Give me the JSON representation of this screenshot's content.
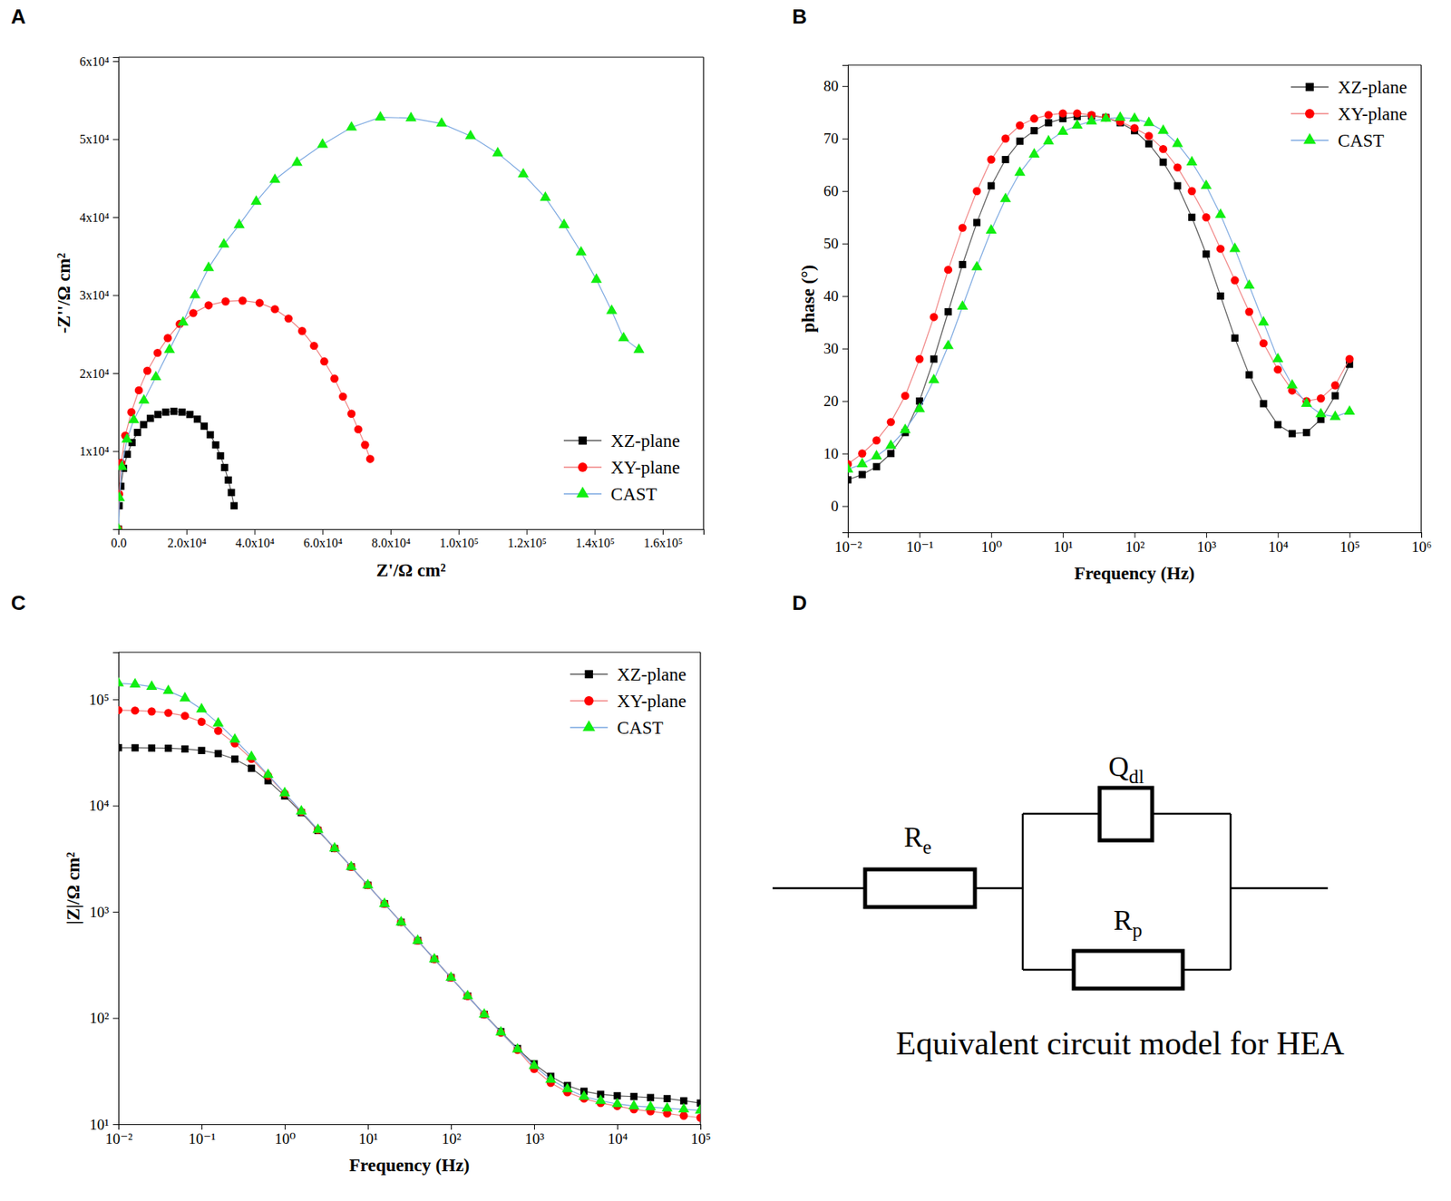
{
  "chart_data": [
    {
      "type": "line",
      "panel": "A",
      "x_label": "Z'/Ω cm²",
      "y_label": "-Z''/Ω cm²",
      "xlim": [
        0,
        172000
      ],
      "ylim": [
        0,
        60500
      ],
      "xticks": [
        {
          "value": 0,
          "label": "0.0"
        },
        {
          "value": 20000,
          "label": "2.0x10⁴"
        },
        {
          "value": 40000,
          "label": "4.0x10⁴"
        },
        {
          "value": 60000,
          "label": "6.0x10⁴"
        },
        {
          "value": 80000,
          "label": "8.0x10⁴"
        },
        {
          "value": 100000,
          "label": "1.0x10⁵"
        },
        {
          "value": 120000,
          "label": "1.2x10⁵"
        },
        {
          "value": 140000,
          "label": "1.4x10⁵"
        },
        {
          "value": 160000,
          "label": "1.6x10⁵"
        }
      ],
      "yticks": [
        {
          "value": 10000,
          "label": "1x10⁴"
        },
        {
          "value": 20000,
          "label": "2x10⁴"
        },
        {
          "value": 30000,
          "label": "3x10⁴"
        },
        {
          "value": 40000,
          "label": "4x10⁴"
        },
        {
          "value": 50000,
          "label": "5x10⁴"
        },
        {
          "value": 60000,
          "label": "6x10⁴"
        }
      ],
      "legend": "lower right",
      "series": [
        {
          "name": "XZ-plane",
          "color": "#000000",
          "marker": "square",
          "x": [
            0,
            200,
            700,
            1500,
            2600,
            4000,
            5600,
            7400,
            9400,
            11600,
            13900,
            16300,
            18700,
            21000,
            23200,
            25200,
            27000,
            28600,
            30000,
            31200,
            32300,
            33200,
            34000
          ],
          "values": [
            0,
            3000,
            5500,
            7800,
            9600,
            11100,
            12400,
            13400,
            14200,
            14700,
            15000,
            15100,
            15000,
            14700,
            14100,
            13200,
            12100,
            10800,
            9400,
            7900,
            6300,
            4700,
            3000
          ]
        },
        {
          "name": "XY-plane",
          "color": "#ff0000",
          "marker": "circle",
          "x": [
            0,
            200,
            800,
            2000,
            3800,
            6000,
            8500,
            11500,
            14500,
            18000,
            22000,
            26500,
            31500,
            36500,
            41500,
            46000,
            50000,
            54000,
            57500,
            60500,
            63500,
            66000,
            68500,
            70500,
            72500,
            74000
          ],
          "values": [
            0,
            4500,
            8500,
            12000,
            15000,
            17800,
            20300,
            22600,
            24500,
            26300,
            27700,
            28700,
            29200,
            29300,
            29000,
            28200,
            27000,
            25400,
            23500,
            21500,
            19300,
            17000,
            14800,
            12800,
            10800,
            9000
          ]
        },
        {
          "name": "CAST",
          "color": "#11ee11",
          "marker": "triangle",
          "x": [
            0,
            300,
            1000,
            2500,
            4500,
            7500,
            11000,
            15000,
            19000,
            22500,
            26500,
            31000,
            35500,
            40500,
            46000,
            52500,
            60000,
            68500,
            77000,
            86000,
            95000,
            103500,
            111500,
            119000,
            125500,
            131000,
            136000,
            140500,
            145000,
            148500,
            153000
          ],
          "values": [
            0,
            4000,
            8000,
            11500,
            14000,
            16500,
            19500,
            23000,
            26500,
            30000,
            33500,
            36500,
            39000,
            42000,
            44800,
            47000,
            49300,
            51500,
            52800,
            52700,
            52000,
            50400,
            48200,
            45500,
            42500,
            39000,
            35500,
            32000,
            28000,
            24500,
            23000
          ]
        }
      ]
    },
    {
      "type": "line",
      "panel": "B",
      "x_label": "Frequency (Hz)",
      "y_label": "phase (°)",
      "log": "x",
      "xlim": [
        0.01,
        1000000
      ],
      "ylim": [
        -5,
        84
      ],
      "xticks": [
        {
          "value": 0.01,
          "label": "10⁻²"
        },
        {
          "value": 0.1,
          "label": "10⁻¹"
        },
        {
          "value": 1,
          "label": "10⁰"
        },
        {
          "value": 10,
          "label": "10¹"
        },
        {
          "value": 100,
          "label": "10²"
        },
        {
          "value": 1000,
          "label": "10³"
        },
        {
          "value": 10000,
          "label": "10⁴"
        },
        {
          "value": 100000,
          "label": "10⁵"
        },
        {
          "value": 1000000,
          "label": "10⁶"
        }
      ],
      "yticks": [
        0,
        10,
        20,
        30,
        40,
        50,
        60,
        70,
        80
      ],
      "legend": "upper right",
      "x": [
        0.01,
        0.01585,
        0.02512,
        0.03981,
        0.0631,
        0.1,
        0.1585,
        0.2512,
        0.3981,
        0.631,
        1,
        1.585,
        2.512,
        3.981,
        6.31,
        10,
        15.85,
        25.12,
        39.81,
        63.1,
        100,
        158.5,
        251.2,
        398.1,
        631,
        1000,
        1585,
        2512,
        3981,
        6310,
        10000,
        15850,
        25120,
        39810,
        63100,
        100000
      ],
      "series": [
        {
          "name": "XZ-plane",
          "color": "#000000",
          "marker": "square",
          "values": [
            5,
            6,
            7.5,
            10,
            14,
            20,
            28,
            37,
            46,
            54,
            61,
            66,
            69.5,
            71.5,
            73,
            73.8,
            74.2,
            74.3,
            74,
            73,
            71.5,
            69,
            65.5,
            61,
            55,
            48,
            40,
            32,
            25,
            19.5,
            15.5,
            13.8,
            14,
            16.5,
            21,
            27
          ]
        },
        {
          "name": "XY-plane",
          "color": "#ff0000",
          "marker": "circle",
          "values": [
            8,
            10,
            12.5,
            16,
            21,
            28,
            36,
            45,
            53,
            60,
            66,
            70,
            72.5,
            73.8,
            74.5,
            74.8,
            74.8,
            74.5,
            74,
            73.2,
            72,
            70.5,
            68,
            64.5,
            60,
            55,
            49,
            43,
            37,
            31,
            26,
            22,
            20,
            20.5,
            23,
            28
          ]
        },
        {
          "name": "CAST",
          "color": "#11ee11",
          "marker": "triangle",
          "values": [
            7,
            8,
            9.5,
            11.5,
            14.5,
            18.5,
            24,
            30.5,
            38,
            45.5,
            52.5,
            58.5,
            63.5,
            67,
            69.5,
            71.3,
            72.5,
            73.3,
            73.8,
            74,
            73.8,
            73,
            71.5,
            69,
            65.5,
            61,
            55.5,
            49,
            42,
            35,
            28,
            23,
            19.5,
            17.5,
            17,
            18
          ]
        }
      ]
    },
    {
      "type": "line",
      "panel": "C",
      "x_label": "Frequency (Hz)",
      "y_label": "|Z|/Ω cm²",
      "log": true,
      "xlim": [
        0.01,
        100000
      ],
      "ylim": [
        10,
        278000
      ],
      "xticks": [
        {
          "value": 0.01,
          "label": "10⁻²"
        },
        {
          "value": 0.1,
          "label": "10⁻¹"
        },
        {
          "value": 1,
          "label": "10⁰"
        },
        {
          "value": 10,
          "label": "10¹"
        },
        {
          "value": 100,
          "label": "10²"
        },
        {
          "value": 1000,
          "label": "10³"
        },
        {
          "value": 10000,
          "label": "10⁴"
        },
        {
          "value": 100000,
          "label": "10⁵"
        }
      ],
      "yticks": [
        {
          "value": 10,
          "label": "10¹"
        },
        {
          "value": 100,
          "label": "10²"
        },
        {
          "value": 1000,
          "label": "10³"
        },
        {
          "value": 10000,
          "label": "10⁴"
        },
        {
          "value": 100000,
          "label": "10⁵"
        }
      ],
      "legend": "upper right",
      "x": [
        0.01,
        0.01585,
        0.02512,
        0.03981,
        0.0631,
        0.1,
        0.1585,
        0.2512,
        0.3981,
        0.631,
        1,
        1.585,
        2.512,
        3.981,
        6.31,
        10,
        15.85,
        25.12,
        39.81,
        63.1,
        100,
        158.5,
        251.2,
        398.1,
        631,
        1000,
        1585,
        2512,
        3981,
        6310,
        10000,
        15850,
        25120,
        39810,
        63100,
        100000
      ],
      "series": [
        {
          "name": "XZ-plane",
          "color": "#000000",
          "marker": "square",
          "values": [
            35080,
            34990,
            34830,
            34670,
            34120,
            33040,
            30900,
            27420,
            22440,
            17140,
            12330,
            8570,
            5830,
            3940,
            2650,
            1780,
            1190,
            798,
            535,
            358,
            240,
            161,
            108,
            74.3,
            51.6,
            37.0,
            28.2,
            23.1,
            20.4,
            19.1,
            18.5,
            18.2,
            17.8,
            17.4,
            16.6,
            15.8
          ]
        },
        {
          "name": "XY-plane",
          "color": "#ff0000",
          "marker": "circle",
          "values": [
            79250,
            78520,
            77090,
            74650,
            69980,
            61520,
            50580,
            38460,
            27540,
            19100,
            13000,
            8770,
            5920,
            3960,
            2650,
            1780,
            1190,
            798,
            535,
            358,
            240,
            161,
            108,
            72.8,
            50.1,
            33.1,
            24.5,
            20.0,
            17.4,
            15.8,
            14.8,
            13.8,
            13.2,
            12.6,
            12.0,
            11.5
          ]
        },
        {
          "name": "CAST",
          "color": "#11ee11",
          "marker": "triangle",
          "values": [
            141900,
            138700,
            131800,
            120200,
            102600,
            80910,
            59570,
            41980,
            28770,
            19500,
            13120,
            8830,
            5920,
            3960,
            2650,
            1780,
            1190,
            798,
            535,
            358,
            240,
            161,
            108,
            73.3,
            50.7,
            35.5,
            26.3,
            21.4,
            18.2,
            16.6,
            15.5,
            14.8,
            14.5,
            14.1,
            13.8,
            13.5
          ]
        }
      ]
    }
  ],
  "diagram": {
    "panel": "D",
    "components": [
      {
        "symbol": "R",
        "sub": "e"
      },
      {
        "symbol": "Q",
        "sub": "dl"
      },
      {
        "symbol": "R",
        "sub": "p"
      }
    ],
    "caption": "Equivalent circuit model for HEA"
  }
}
